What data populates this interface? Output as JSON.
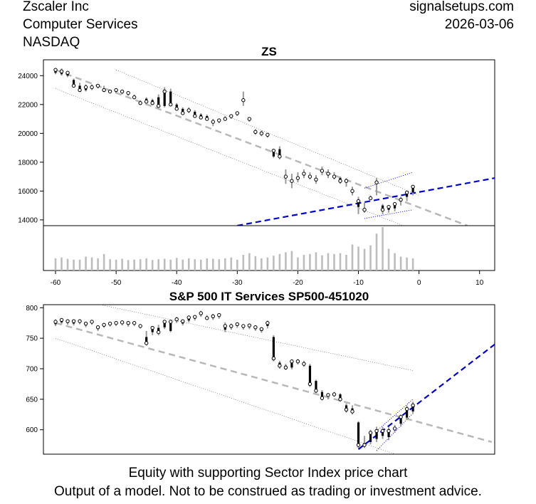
{
  "header": {
    "company": "Zscaler Inc",
    "industry": "Computer Services",
    "exchange": "NASDAQ",
    "site": "signalsetups.com",
    "date": "2026-03-06"
  },
  "footer": {
    "line1": "Equity with supporting Sector Index price chart",
    "line2": "Output of a model. Not to be construed as trading or investment advice."
  },
  "colors": {
    "candle": "#000000",
    "volume": "#bdbdbd",
    "trend": "#b8b8b8",
    "channel": "#555555",
    "signal": "#0000cc"
  },
  "chart_data": [
    {
      "type": "candlestick",
      "title": "ZS",
      "x_ticks": [
        -60,
        -50,
        -40,
        -30,
        -20,
        -10,
        0,
        10
      ],
      "y_ticks": [
        14000,
        16000,
        18000,
        20000,
        22000,
        24000
      ],
      "xlim": [
        -62,
        12.5
      ],
      "ylim": [
        13600,
        25100
      ],
      "x": [
        -60,
        -59,
        -58,
        -57,
        -56,
        -55,
        -54,
        -53,
        -52,
        -51,
        -50,
        -49,
        -48,
        -47,
        -46,
        -45,
        -44,
        -43,
        -42,
        -41,
        -40,
        -39,
        -38,
        -37,
        -36,
        -35,
        -34,
        -33,
        -32,
        -31,
        -30,
        -29,
        -28,
        -27,
        -26,
        -25,
        -24,
        -23,
        -22,
        -21,
        -20,
        -19,
        -18,
        -17,
        -16,
        -15,
        -14,
        -13,
        -12,
        -11,
        -10,
        -9,
        -8,
        -7,
        -6,
        -5,
        -4,
        -3,
        -2,
        -1
      ],
      "open": [
        24200,
        24100,
        24000,
        23700,
        23300,
        23000,
        23100,
        23200,
        23100,
        22900,
        22900,
        22800,
        22700,
        22600,
        22200,
        22400,
        22300,
        22500,
        21900,
        22900,
        22000,
        21700,
        21600,
        21500,
        21300,
        21200,
        20700,
        20800,
        21000,
        21100,
        21300,
        22300,
        20900,
        20100,
        20000,
        19800,
        18400,
        18900,
        17000,
        16800,
        16900,
        17200,
        17000,
        16800,
        17500,
        17300,
        17000,
        16900,
        16600,
        16000,
        14900,
        14600,
        15600,
        16600,
        15000,
        14700,
        14800,
        15400,
        15600,
        15900
      ],
      "close": [
        24400,
        24300,
        24200,
        23300,
        23000,
        23200,
        23200,
        23300,
        23000,
        22900,
        23000,
        22900,
        22800,
        22500,
        22100,
        22200,
        22100,
        21900,
        22900,
        22000,
        21700,
        21400,
        21600,
        21200,
        21100,
        21000,
        20800,
        20900,
        21000,
        21200,
        21400,
        22300,
        21000,
        20100,
        20000,
        19900,
        18800,
        18400,
        17000,
        16700,
        16900,
        17200,
        17000,
        16800,
        17400,
        17200,
        17000,
        16700,
        16700,
        16000,
        15300,
        14700,
        15500,
        16600,
        14700,
        14900,
        15100,
        15400,
        15900,
        16300
      ],
      "high": [
        24500,
        24500,
        24300,
        23800,
        23500,
        23400,
        23400,
        23400,
        23300,
        23000,
        23100,
        23000,
        22900,
        22700,
        22300,
        22500,
        22400,
        22700,
        23200,
        23100,
        22100,
        21800,
        21800,
        21600,
        21400,
        21300,
        21000,
        21000,
        21200,
        21300,
        21500,
        22900,
        21100,
        20300,
        20200,
        20000,
        18900,
        19100,
        17500,
        17200,
        17300,
        17500,
        17300,
        17100,
        17700,
        17500,
        17300,
        17000,
        16900,
        16300,
        15600,
        15200,
        15700,
        16900,
        15100,
        15000,
        15200,
        15600,
        16000,
        16400
      ],
      "low": [
        24100,
        24000,
        23900,
        23200,
        22900,
        22900,
        23000,
        23100,
        22900,
        22800,
        22800,
        22700,
        22600,
        22400,
        22000,
        22100,
        22000,
        21800,
        21800,
        21900,
        21600,
        21300,
        21400,
        21100,
        21000,
        20900,
        20500,
        20700,
        20900,
        21000,
        21200,
        21900,
        20800,
        19900,
        19800,
        19700,
        18300,
        18200,
        16500,
        16200,
        16600,
        16900,
        16800,
        16500,
        17100,
        16900,
        16800,
        16500,
        16300,
        15700,
        14400,
        14500,
        15400,
        15700,
        14400,
        14500,
        14600,
        15000,
        15300,
        15700
      ],
      "volume": [
        0.28,
        0.3,
        0.27,
        0.25,
        0.25,
        0.32,
        0.3,
        0.28,
        0.38,
        0.26,
        0.25,
        0.27,
        0.24,
        0.25,
        0.26,
        0.28,
        0.24,
        0.26,
        0.27,
        0.25,
        0.29,
        0.25,
        0.28,
        0.26,
        0.25,
        0.28,
        0.27,
        0.26,
        0.28,
        0.3,
        0.25,
        0.36,
        0.4,
        0.33,
        0.28,
        0.3,
        0.34,
        0.38,
        0.42,
        0.45,
        0.3,
        0.36,
        0.38,
        0.42,
        0.35,
        0.4,
        0.38,
        0.4,
        0.36,
        0.6,
        0.55,
        0.5,
        0.58,
        0.85,
        1.0,
        0.5,
        0.4,
        0.32,
        0.3,
        0.28
      ],
      "trend_mid": {
        "x": [
          -60,
          8
        ],
        "y": [
          24400,
          13600
        ]
      },
      "trend_upper": {
        "x": [
          -50,
          0
        ],
        "y": [
          24400,
          15700
        ]
      },
      "trend_lower": {
        "x": [
          -60,
          -2
        ],
        "y": [
          23100,
          13500
        ]
      },
      "signal_line": {
        "x": [
          -30,
          12.5
        ],
        "y": [
          13600,
          16900
        ]
      },
      "signal_upper": {
        "x": [
          -9,
          -1
        ],
        "y": [
          16200,
          17300
        ]
      },
      "signal_lower": {
        "x": [
          -9,
          -1
        ],
        "y": [
          14100,
          14700
        ]
      }
    },
    {
      "type": "candlestick",
      "title": "S&P 500 IT Services SP500-451020",
      "y_ticks": [
        600,
        650,
        700,
        750,
        800
      ],
      "xlim": [
        -62,
        12.5
      ],
      "ylim": [
        560,
        805
      ],
      "x": [
        -60,
        -59,
        -58,
        -57,
        -56,
        -55,
        -54,
        -53,
        -52,
        -51,
        -50,
        -49,
        -48,
        -47,
        -46,
        -45,
        -44,
        -43,
        -42,
        -41,
        -40,
        -39,
        -38,
        -37,
        -36,
        -35,
        -34,
        -33,
        -32,
        -31,
        -30,
        -29,
        -28,
        -27,
        -26,
        -25,
        -24,
        -23,
        -22,
        -21,
        -20,
        -19,
        -18,
        -17,
        -16,
        -15,
        -14,
        -13,
        -12,
        -11,
        -10,
        -9,
        -8,
        -7,
        -6,
        -5,
        -4,
        -3,
        -2,
        -1
      ],
      "open": [
        773,
        776,
        775,
        774,
        776,
        771,
        775,
        765,
        770,
        772,
        773,
        774,
        772,
        773,
        769,
        752,
        760,
        767,
        768,
        762,
        778,
        774,
        779,
        782,
        788,
        784,
        783,
        785,
        764,
        767,
        770,
        767,
        768,
        765,
        762,
        770,
        752,
        710,
        705,
        702,
        712,
        710,
        705,
        680,
        662,
        655,
        660,
        658,
        640,
        635,
        612,
        578,
        580,
        585,
        590,
        588,
        600,
        610,
        620,
        630
      ],
      "close": [
        777,
        780,
        778,
        778,
        778,
        774,
        777,
        768,
        772,
        774,
        775,
        776,
        775,
        775,
        770,
        742,
        767,
        760,
        777,
        777,
        781,
        778,
        784,
        785,
        791,
        783,
        786,
        788,
        770,
        770,
        773,
        770,
        771,
        768,
        765,
        775,
        717,
        705,
        702,
        712,
        712,
        708,
        675,
        664,
        652,
        657,
        658,
        650,
        633,
        630,
        575,
        575,
        595,
        598,
        598,
        598,
        602,
        621,
        634,
        640
      ],
      "high": [
        781,
        783,
        781,
        781,
        781,
        777,
        780,
        771,
        775,
        777,
        778,
        779,
        778,
        778,
        773,
        762,
        770,
        772,
        780,
        780,
        785,
        781,
        787,
        788,
        795,
        788,
        790,
        791,
        776,
        774,
        776,
        773,
        774,
        771,
        768,
        779,
        755,
        713,
        708,
        715,
        716,
        713,
        708,
        682,
        665,
        660,
        662,
        660,
        643,
        640,
        614,
        590,
        600,
        605,
        605,
        604,
        608,
        625,
        640,
        646
      ],
      "low": [
        770,
        773,
        772,
        771,
        773,
        768,
        772,
        762,
        767,
        769,
        770,
        771,
        769,
        770,
        766,
        738,
        755,
        755,
        765,
        760,
        775,
        771,
        776,
        779,
        785,
        780,
        780,
        782,
        760,
        764,
        767,
        764,
        765,
        762,
        759,
        766,
        712,
        700,
        698,
        699,
        707,
        703,
        670,
        660,
        648,
        650,
        654,
        646,
        628,
        625,
        570,
        570,
        576,
        580,
        585,
        583,
        595,
        605,
        616,
        626
      ],
      "trend_mid": {
        "x": [
          -60,
          12
        ],
        "y": [
          775,
          580
        ]
      },
      "trend_upper": {
        "x": [
          -56,
          -1
        ],
        "y": [
          812,
          697
        ]
      },
      "trend_lower": {
        "x": [
          -60,
          -3
        ],
        "y": [
          750,
          557
        ]
      },
      "signal_line": {
        "x": [
          -10,
          12.5
        ],
        "y": [
          568,
          740
        ]
      },
      "signal_upper": {
        "x": [
          -7,
          -1
        ],
        "y": [
          598,
          650
        ]
      },
      "signal_lower": {
        "x": [
          -7,
          -1
        ],
        "y": [
          566,
          627
        ]
      }
    }
  ]
}
